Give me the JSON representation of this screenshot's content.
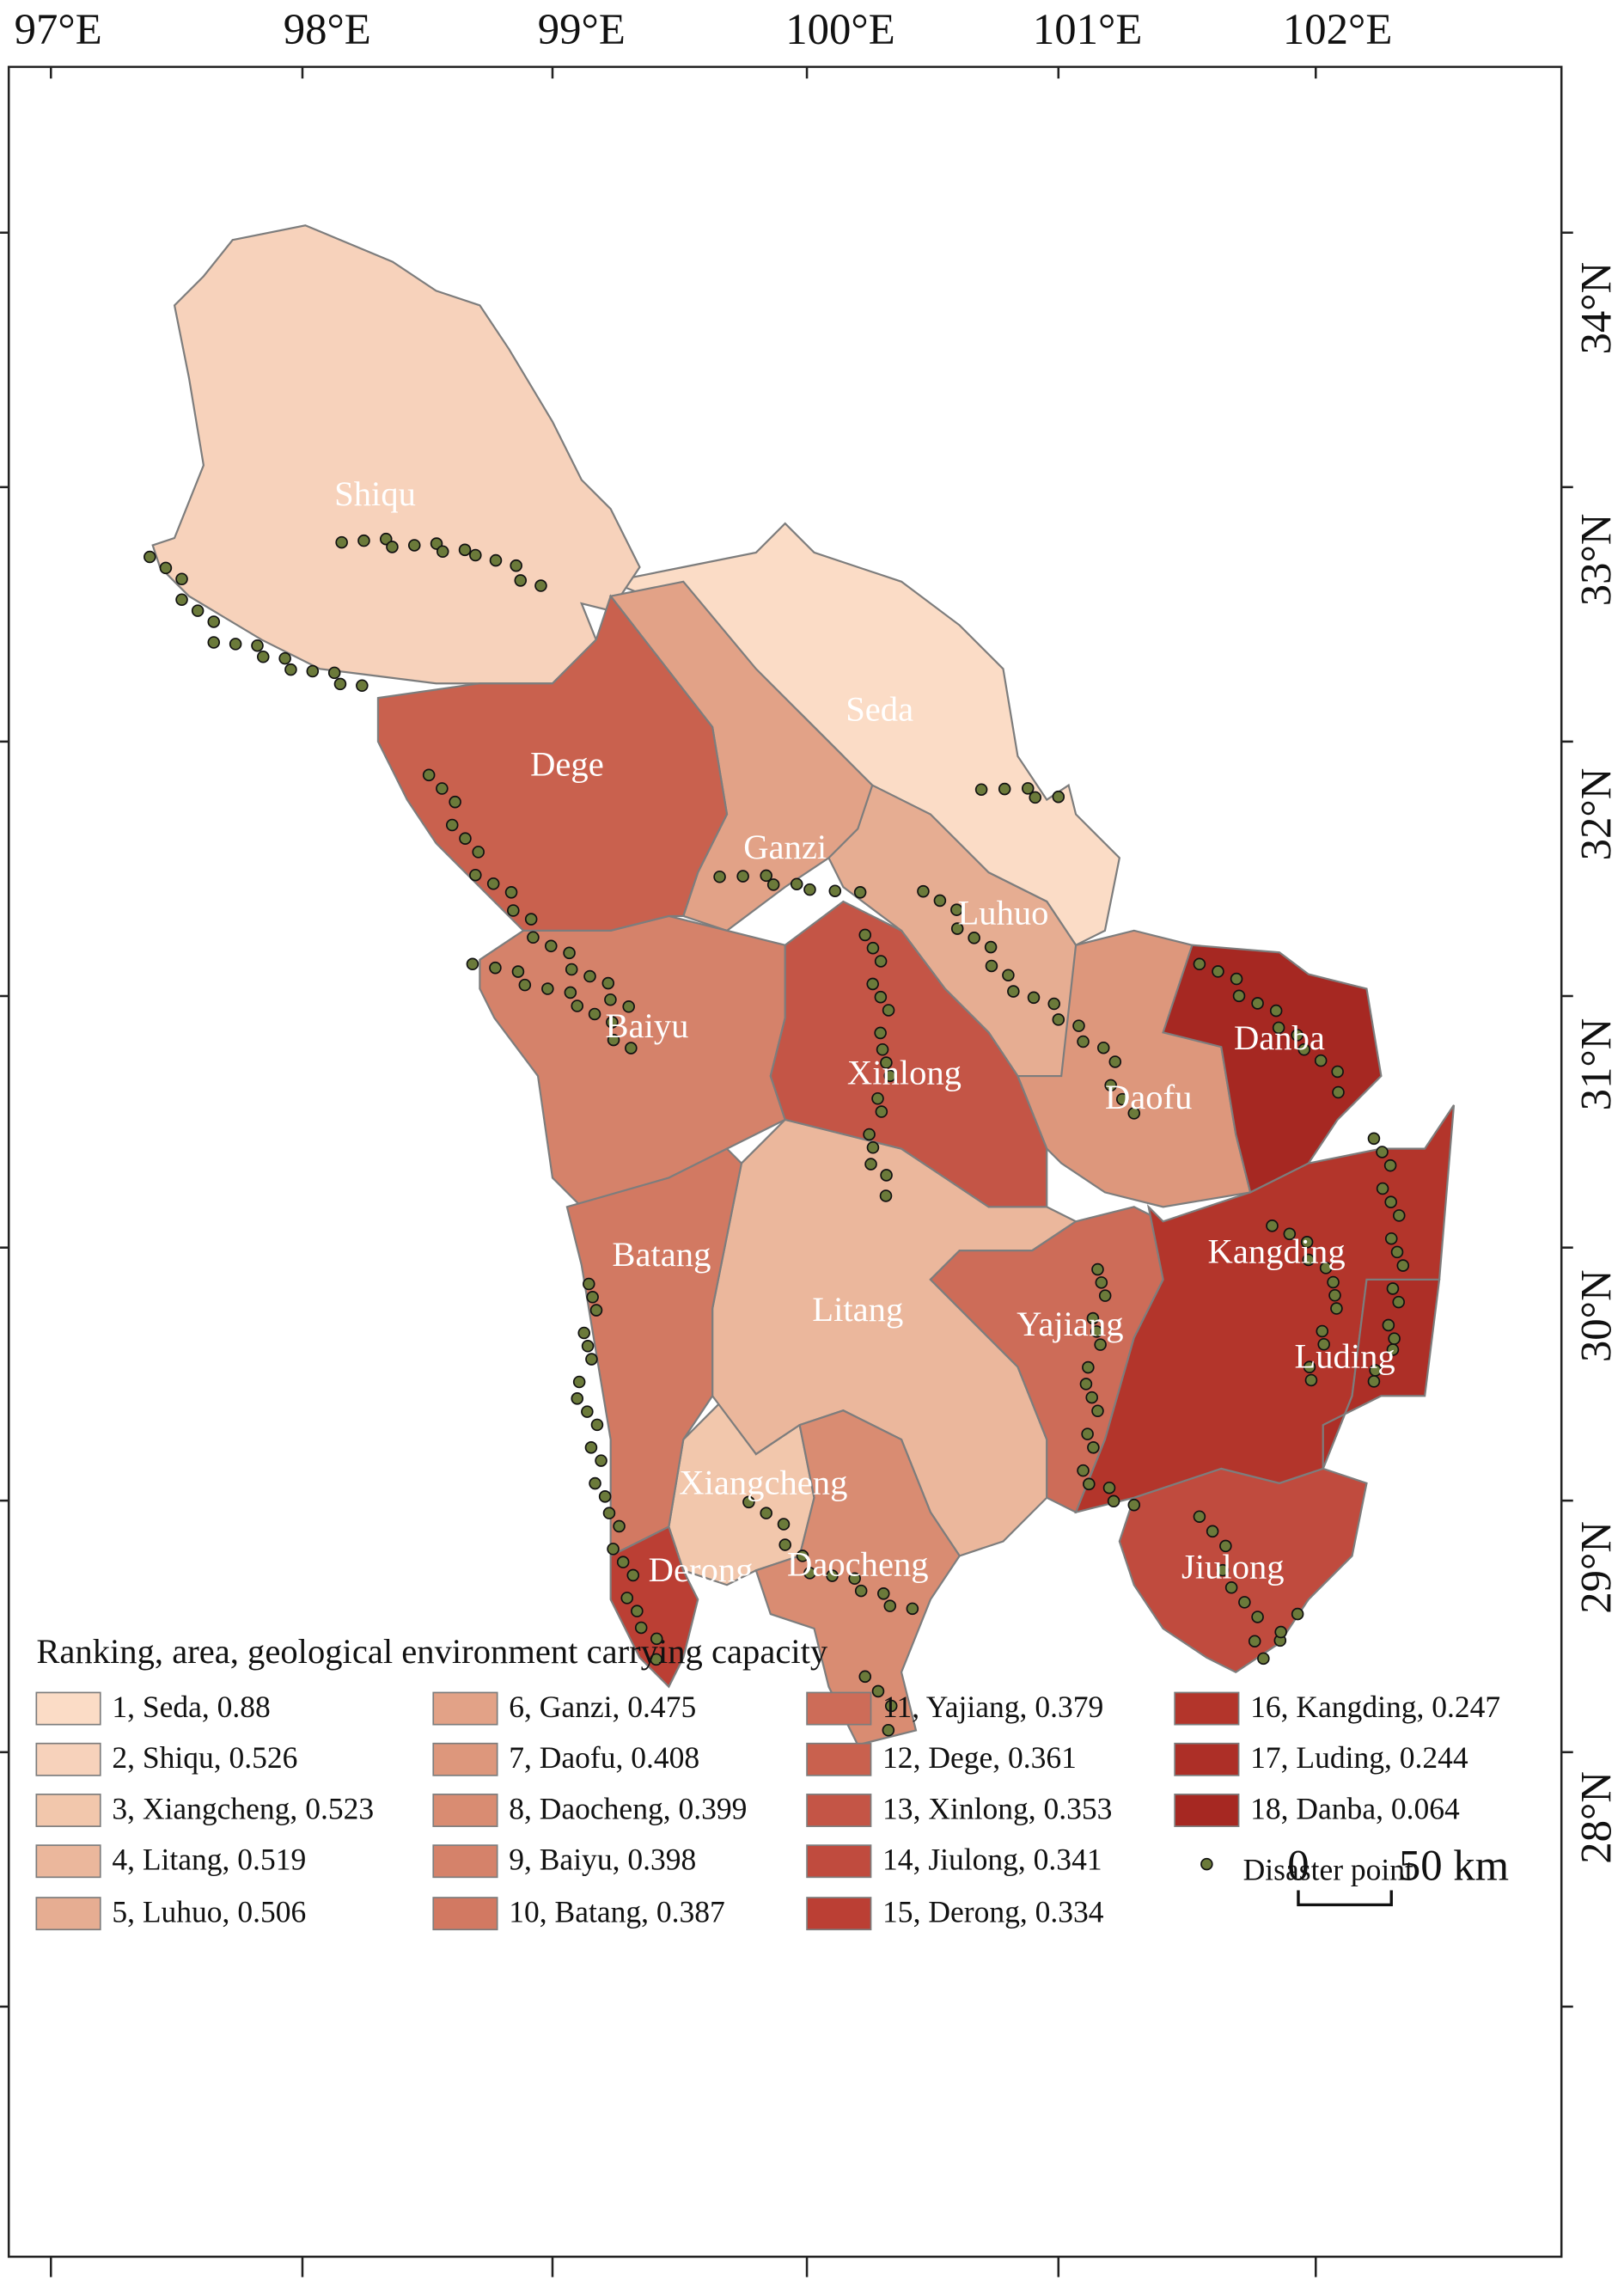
{
  "longitude_labels": [
    "97°E",
    "98°E",
    "99°E",
    "100°E",
    "101°E",
    "102°E"
  ],
  "latitude_labels": [
    "34°N",
    "33°N",
    "32°N",
    "31°N",
    "30°N",
    "29°N",
    "28°N"
  ],
  "regions": [
    "Seda",
    "Shiqu",
    "Xiangcheng",
    "Litang",
    "Luhuo",
    "Ganzi",
    "Daofu",
    "Daocheng",
    "Baiyu",
    "Batang",
    "Yajiang",
    "Dege",
    "Xinlong",
    "Jiulong",
    "Derong",
    "Kangding",
    "Luding",
    "Danba"
  ],
  "scale_bar": {
    "start": "0",
    "end": "50 km"
  },
  "legend": {
    "title": "Ranking, area, geological environment carrying capacity",
    "items": [
      {
        "label": "1, Seda, 0.88",
        "color": "#fbdcc6"
      },
      {
        "label": "2, Shiqu, 0.526",
        "color": "#f7d2bb"
      },
      {
        "label": "3, Xiangcheng, 0.523",
        "color": "#f2c7ac"
      },
      {
        "label": "4, Litang, 0.519",
        "color": "#ebb79c"
      },
      {
        "label": "5, Luhuo, 0.506",
        "color": "#e6ad92"
      },
      {
        "label": "6, Ganzi, 0.475",
        "color": "#e2a287"
      },
      {
        "label": "7, Daofu, 0.408",
        "color": "#dd977c"
      },
      {
        "label": "8, Daocheng, 0.399",
        "color": "#d98c72"
      },
      {
        "label": "9, Baiyu, 0.398",
        "color": "#d5826a"
      },
      {
        "label": "10, Batang, 0.387",
        "color": "#d27962"
      },
      {
        "label": "11, Yajiang, 0.379",
        "color": "#cd6c58"
      },
      {
        "label": "12, Dege, 0.361",
        "color": "#c9614e"
      },
      {
        "label": "13, Xinlong, 0.353",
        "color": "#c45546"
      },
      {
        "label": "14, Jiulong, 0.341",
        "color": "#c04b3e"
      },
      {
        "label": "15, Derong, 0.334",
        "color": "#bb3f34"
      },
      {
        "label": "16, Kangding, 0.247",
        "color": "#b3352b"
      },
      {
        "label": "17, Luding, 0.244",
        "color": "#ad2f27"
      },
      {
        "label": "18, Danba, 0.064",
        "color": "#a62822"
      }
    ],
    "point_label": "Disaster point",
    "point_color": "#6b7a3a"
  }
}
